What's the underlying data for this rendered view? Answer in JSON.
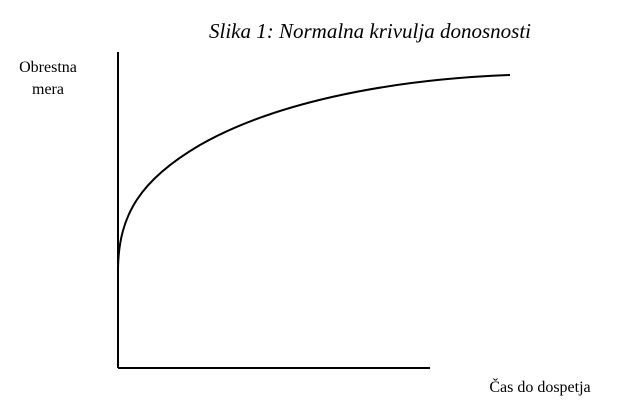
{
  "title": "Slika 1: Normalna krivulja donosnosti",
  "y_label": [
    "Obrestna",
    "mera"
  ],
  "x_label": "Čas do dospetja"
}
